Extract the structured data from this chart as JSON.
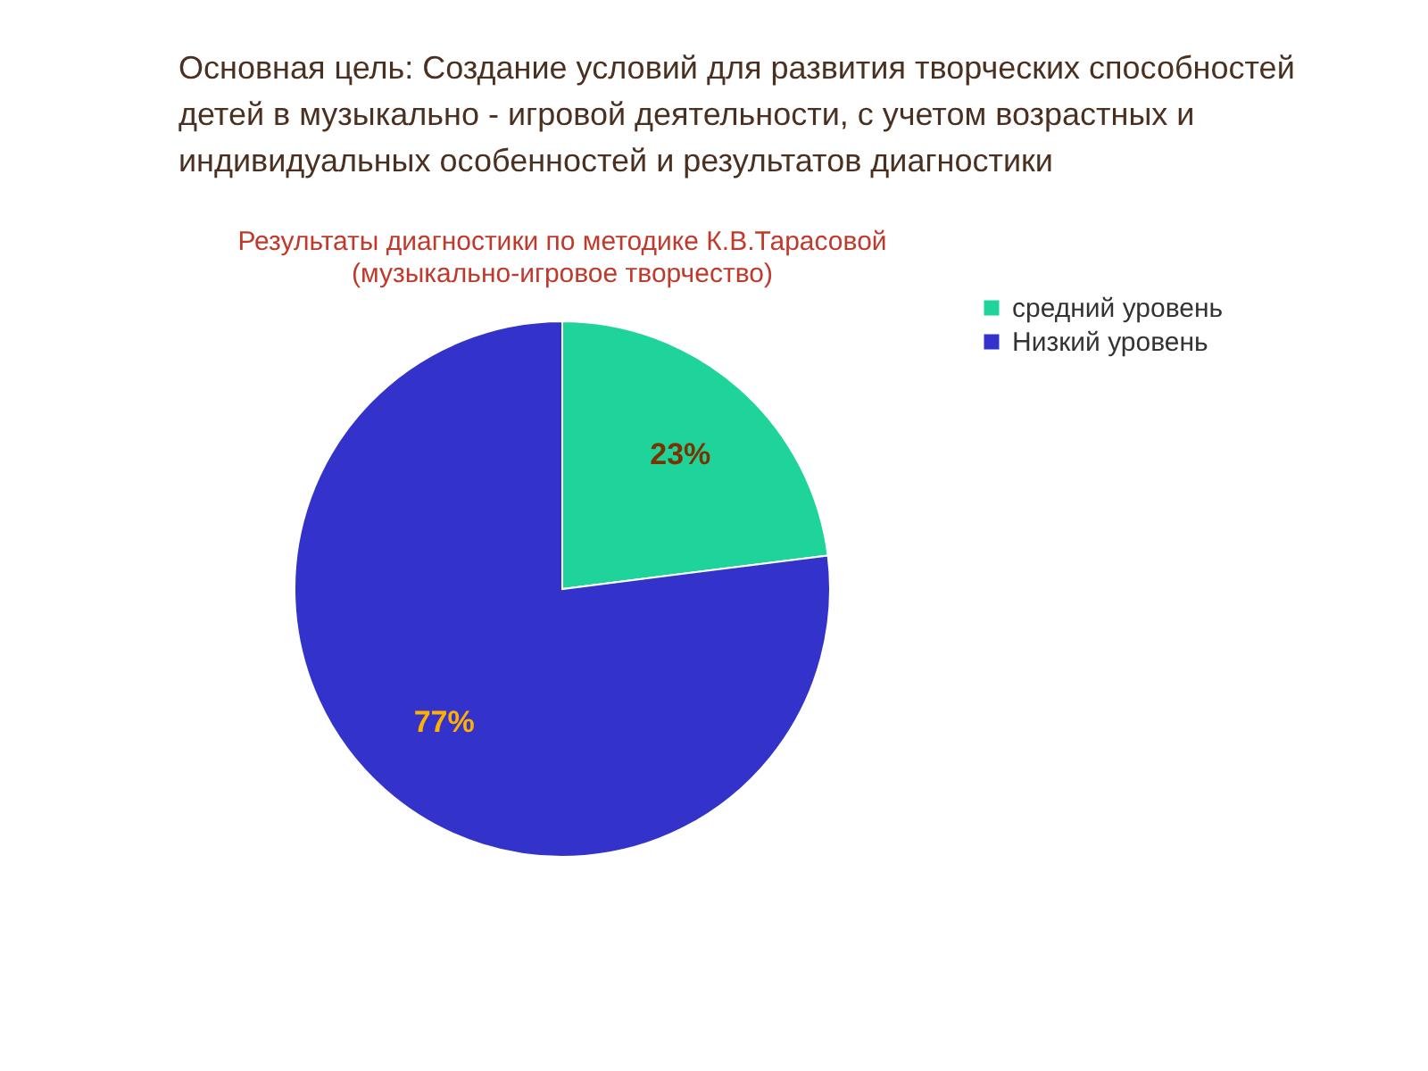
{
  "chart_data": {
    "type": "pie",
    "title": "Результаты диагностики по методике К.В.Тарасовой",
    "subtitle": "(музыкально-игровое творчество)",
    "annotations": [
      "Основная цель: Создание условий для развития творческих способностей детей в музыкально - игровой деятельности, с учетом возрастных и индивидуальных особенностей и результатов диагностики"
    ],
    "categories": [
      "средний уровень",
      "Низкий уровень"
    ],
    "values": [
      23,
      77
    ],
    "colors": [
      "#1ed49a",
      "#3333cc"
    ],
    "value_labels": [
      "23%",
      "77%"
    ],
    "legend": "right"
  }
}
